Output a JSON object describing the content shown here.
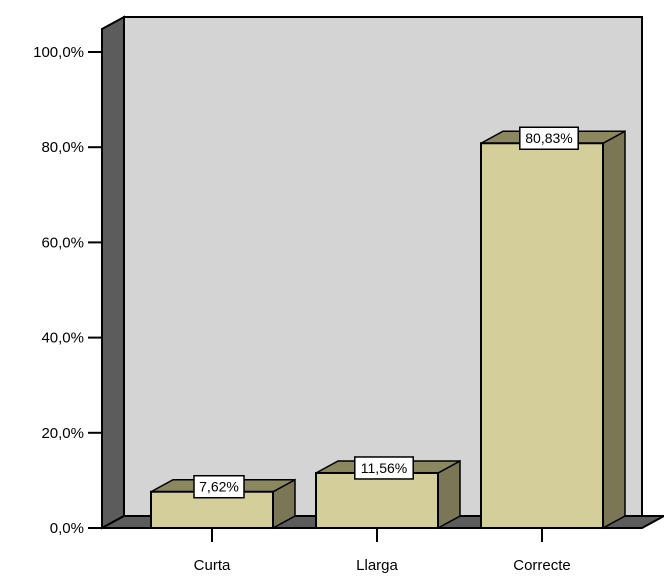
{
  "chart_data": {
    "type": "bar",
    "categories": [
      "Curta",
      "Llarga",
      "Correcte"
    ],
    "values": [
      7.62,
      11.56,
      80.83
    ],
    "data_labels": [
      "7,62%",
      "11,56%",
      "80,83%"
    ],
    "ylim": [
      0,
      100
    ],
    "yticks": [
      0,
      20,
      40,
      60,
      80,
      100
    ],
    "ytick_labels": [
      "0,0%",
      "20,0%",
      "40,0%",
      "60,0%",
      "80,0%",
      "100,0%"
    ],
    "grid": false,
    "legend": "none",
    "style": "3d",
    "colors": {
      "bar_front": "#d4cf9a",
      "bar_side": "#7a7656",
      "bar_top": "#8b875f",
      "plot_back": "#d4d4d4",
      "plot_wall": "#5c5c5c",
      "outline": "#000000"
    }
  }
}
